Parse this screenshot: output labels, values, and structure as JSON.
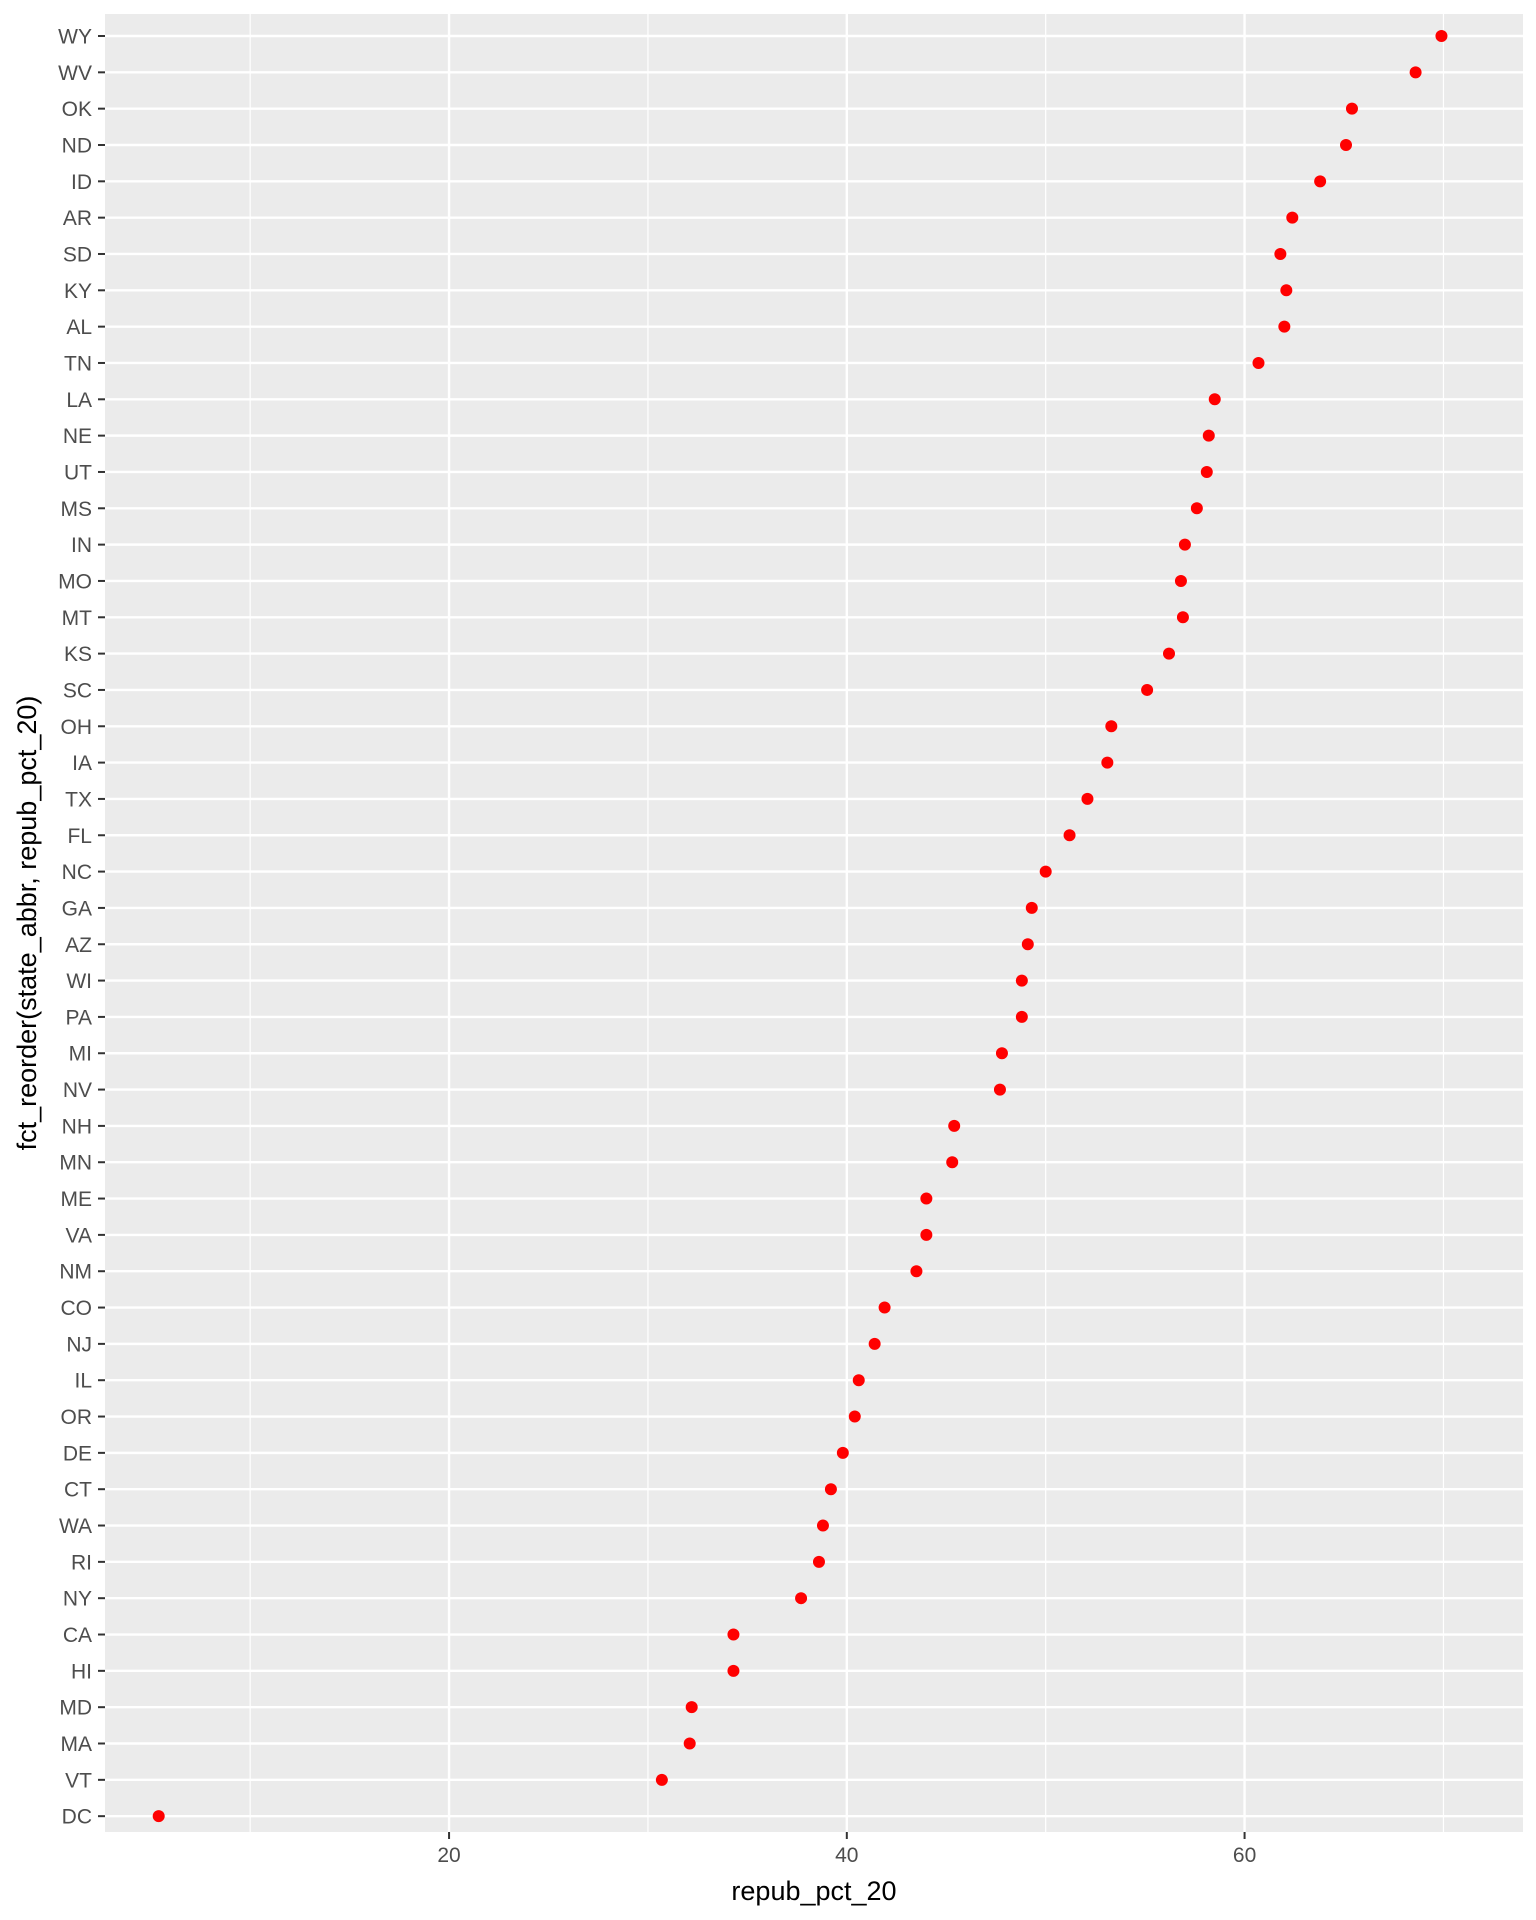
{
  "chart_data": {
    "type": "scatter",
    "title": "",
    "xlabel": "repub_pct_20",
    "ylabel": "fct_reorder(state_abbr, repub_pct_20)",
    "xlim": [
      2.7,
      74.0
    ],
    "xticks": [
      20,
      40,
      60
    ],
    "grid": true,
    "point_color": "#ff0000",
    "panel_background": "#ebebeb",
    "grid_color": "#ffffff",
    "categories": [
      "DC",
      "VT",
      "MA",
      "MD",
      "HI",
      "CA",
      "NY",
      "RI",
      "WA",
      "CT",
      "DE",
      "OR",
      "IL",
      "NJ",
      "CO",
      "NM",
      "VA",
      "ME",
      "MN",
      "NH",
      "NV",
      "MI",
      "PA",
      "WI",
      "AZ",
      "GA",
      "NC",
      "FL",
      "TX",
      "IA",
      "OH",
      "SC",
      "KS",
      "MT",
      "MO",
      "IN",
      "MS",
      "UT",
      "NE",
      "LA",
      "TN",
      "AL",
      "KY",
      "SD",
      "AR",
      "ID",
      "ND",
      "OK",
      "WV",
      "WY"
    ],
    "values": [
      5.4,
      30.7,
      32.1,
      32.2,
      34.3,
      34.3,
      37.7,
      38.6,
      38.8,
      39.2,
      39.8,
      40.4,
      40.6,
      41.4,
      41.9,
      43.5,
      44.0,
      44.0,
      45.3,
      45.4,
      47.7,
      47.8,
      48.8,
      48.8,
      49.1,
      49.3,
      50.0,
      51.2,
      52.1,
      53.1,
      53.3,
      55.1,
      56.2,
      56.9,
      56.8,
      57.0,
      57.6,
      58.1,
      58.2,
      58.5,
      60.7,
      62.0,
      62.1,
      61.8,
      62.4,
      63.8,
      65.1,
      65.4,
      68.6,
      69.9
    ]
  }
}
